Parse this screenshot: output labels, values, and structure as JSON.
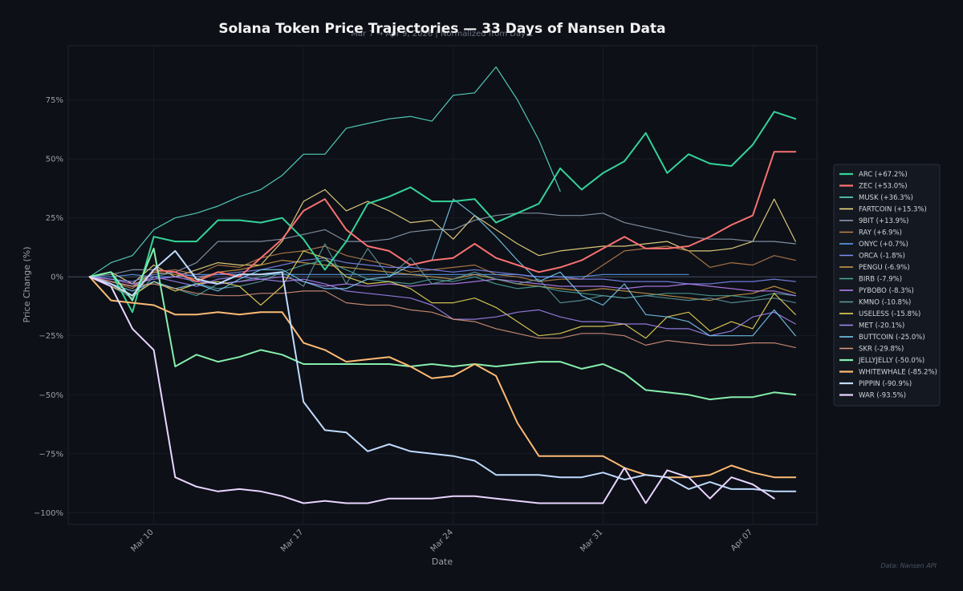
{
  "chart_data": {
    "type": "line",
    "title": "Solana Token Price Trajectories — 33 Days of Nansen Data",
    "subtitle": "Mar 7 → Apr 9, 2026 | Normalized from Day 1",
    "xlabel": "Date",
    "ylabel": "Price Change (%)",
    "source": "Data: Nansen API",
    "ylim": [
      -105,
      98
    ],
    "xlim": [
      -1,
      34
    ],
    "x_ticks": [
      {
        "day": 3,
        "label": "Mar 10"
      },
      {
        "day": 10,
        "label": "Mar 17"
      },
      {
        "day": 17,
        "label": "Mar 24"
      },
      {
        "day": 24,
        "label": "Mar 31"
      },
      {
        "day": 31,
        "label": "Apr 07"
      }
    ],
    "y_ticks": [
      {
        "value": 75,
        "label": "75%"
      },
      {
        "value": 50,
        "label": "50%"
      },
      {
        "value": 25,
        "label": "25%"
      },
      {
        "value": 0,
        "label": "0%"
      },
      {
        "value": -25,
        "label": "−25%"
      },
      {
        "value": -50,
        "label": "−50%"
      },
      {
        "value": -75,
        "label": "−75%"
      },
      {
        "value": -100,
        "label": "−100%"
      }
    ],
    "grid": true,
    "legend_position": "right",
    "series": [
      {
        "name": "ARC",
        "legend": "ARC (+67.2%)",
        "color": "#34d399",
        "bold": true,
        "values": [
          0,
          2,
          -15,
          17,
          15,
          15,
          24,
          24,
          23,
          25,
          16,
          3,
          15,
          31,
          34,
          38,
          32,
          32,
          33,
          23,
          27,
          31,
          46,
          37,
          44,
          49,
          61,
          44,
          52,
          48,
          47,
          56,
          70,
          67
        ]
      },
      {
        "name": "ZEC",
        "legend": "ZEC (+53.0%)",
        "color": "#f87171",
        "bold": true,
        "values": [
          0,
          -3,
          -8,
          3,
          2,
          -2,
          2,
          0,
          8,
          16,
          28,
          33,
          20,
          13,
          11,
          5,
          7,
          8,
          14,
          8,
          5,
          2,
          4,
          7,
          12,
          17,
          12,
          12,
          13,
          17,
          22,
          26,
          53,
          53
        ]
      },
      {
        "name": "MUSK",
        "legend": "MUSK (+36.3%)",
        "color": "#5eead4",
        "bold": false,
        "values": [
          0,
          6,
          9,
          20,
          25,
          27,
          30,
          34,
          37,
          43,
          52,
          52,
          63,
          65,
          67,
          68,
          66,
          77,
          78,
          89,
          75,
          58,
          36.3
        ]
      },
      {
        "name": "FARTCOIN",
        "legend": "FARTCOIN (+15.3%)",
        "color": "#fde68a",
        "bold": false,
        "values": [
          0,
          2,
          -3,
          5,
          0,
          3,
          6,
          5,
          5,
          15,
          32,
          37,
          28,
          32,
          28,
          23,
          24,
          16,
          26,
          20,
          14,
          9,
          11,
          12,
          13,
          13,
          14,
          15,
          11,
          11,
          12,
          15,
          33,
          15
        ]
      },
      {
        "name": "9BIT",
        "legend": "9BIT (+13.9%)",
        "color": "#94a3b8",
        "bold": false,
        "values": [
          0,
          1,
          3,
          3,
          2,
          6,
          15,
          15,
          15,
          16,
          18,
          20,
          15,
          15,
          16,
          19,
          20,
          20,
          24,
          26,
          27,
          27,
          26,
          26,
          27,
          23,
          21,
          19,
          17,
          16,
          16,
          15,
          15,
          14
        ]
      },
      {
        "name": "RAY",
        "legend": "RAY (+6.9%)",
        "color": "#c0844f",
        "bold": false,
        "values": [
          0,
          -2,
          -5,
          2,
          3,
          1,
          5,
          4,
          8,
          10,
          11,
          13,
          9,
          7,
          5,
          2,
          3,
          4,
          5,
          1,
          0,
          -2,
          -1,
          -1,
          5,
          11,
          12,
          13,
          11,
          4,
          6,
          5,
          9,
          7
        ]
      },
      {
        "name": "ONYC",
        "legend": "ONYC (+0.7%)",
        "color": "#60a5fa",
        "bold": false,
        "values": [
          0,
          0,
          1,
          0,
          0,
          1,
          1,
          1,
          1,
          1,
          1,
          1,
          1,
          1,
          1,
          1,
          1,
          1,
          1,
          1,
          1,
          0,
          0,
          0,
          1,
          1,
          1,
          1,
          1
        ]
      },
      {
        "name": "ORCA",
        "legend": "ORCA (-1.8%)",
        "color": "#818cf8",
        "bold": false,
        "values": [
          0,
          -1,
          -2,
          1,
          2,
          0,
          1,
          2,
          3,
          5,
          7,
          8,
          6,
          5,
          4,
          4,
          3,
          2,
          3,
          2,
          1,
          0,
          0,
          -1,
          -1,
          -2,
          -2,
          -2,
          -3,
          -3,
          -2,
          -2,
          -1,
          -2
        ]
      },
      {
        "name": "PENGU",
        "legend": "PENGU (-6.9%)",
        "color": "#d4a04a",
        "bold": false,
        "values": [
          0,
          -2,
          -4,
          2,
          1,
          -1,
          2,
          3,
          5,
          7,
          6,
          5,
          4,
          3,
          2,
          1,
          0,
          -1,
          1,
          -1,
          -3,
          -4,
          -5,
          -6,
          -5,
          -6,
          -7,
          -8,
          -9,
          -10,
          -8,
          -7,
          -4,
          -7
        ]
      },
      {
        "name": "BIRB",
        "legend": "BIRB (-7.9%)",
        "color": "#4ca79d",
        "bold": false,
        "values": [
          0,
          -3,
          -8,
          -2,
          -5,
          -8,
          -3,
          -2,
          0,
          2,
          5,
          7,
          3,
          -1,
          -2,
          -3,
          -1,
          -2,
          0,
          -3,
          -5,
          -4,
          -6,
          -7,
          -8,
          -9,
          -8,
          -7,
          -7,
          -8,
          -8,
          -9,
          -7,
          -8
        ]
      },
      {
        "name": "PYBOBO",
        "legend": "PYBOBO (-8.3%)",
        "color": "#c084fc",
        "bold": false,
        "values": [
          0,
          -1,
          -3,
          -1,
          0,
          -2,
          -3,
          -2,
          -1,
          0,
          -2,
          -4,
          -3,
          -4,
          -3,
          -4,
          -3,
          -3,
          -2,
          -1,
          -2,
          -3,
          -4,
          -4,
          -4,
          -5,
          -4,
          -4,
          -3,
          -4,
          -5,
          -6,
          -6,
          -8
        ]
      },
      {
        "name": "KMNO",
        "legend": "KMNO (-10.8%)",
        "color": "#5f9ea0",
        "bold": false,
        "values": [
          0,
          -4,
          -9,
          0,
          2,
          -3,
          -5,
          -4,
          -2,
          2,
          -4,
          14,
          -3,
          12,
          0,
          8,
          -3,
          -1,
          2,
          -1,
          -3,
          -1,
          -11,
          -10,
          -8,
          -9,
          -8,
          -9,
          -10,
          -9,
          -11,
          -10,
          -9,
          -11
        ]
      },
      {
        "name": "USELESS",
        "legend": "USELESS (-15.8%)",
        "color": "#f5e15a",
        "bold": false,
        "values": [
          0,
          -4,
          -8,
          -2,
          -6,
          -3,
          -2,
          -4,
          -12,
          -4,
          11,
          8,
          0,
          -3,
          -2,
          -5,
          -11,
          -11,
          -9,
          -13,
          -19,
          -25,
          -24,
          -21,
          -21,
          -20,
          -26,
          -17,
          -15,
          -23,
          -19,
          -22,
          -7,
          -16
        ]
      },
      {
        "name": "MET",
        "legend": "MET (-20.1%)",
        "color": "#a78bfa",
        "bold": false,
        "values": [
          0,
          -2,
          -4,
          0,
          -2,
          -4,
          -1,
          0,
          -1,
          -2,
          -1,
          -3,
          -6,
          -7,
          -8,
          -9,
          -12,
          -18,
          -18,
          -17,
          -15,
          -14,
          -17,
          -19,
          -19,
          -20,
          -20,
          -22,
          -22,
          -25,
          -23,
          -17,
          -15,
          -20
        ]
      },
      {
        "name": "BUTTCOIN",
        "legend": "BUTTCOIN (-25.0%)",
        "color": "#7dd3fc",
        "bold": false,
        "values": [
          0,
          -3,
          -6,
          -2,
          -5,
          -3,
          -6,
          -1,
          3,
          3,
          -2,
          -5,
          -5,
          -1,
          0,
          5,
          7,
          33,
          26,
          17,
          7,
          -2,
          2,
          -8,
          -12,
          -3,
          -16,
          -17,
          -19,
          -25,
          -25,
          -25,
          -14,
          -25
        ]
      },
      {
        "name": "SKR",
        "legend": "SKR (-29.8%)",
        "color": "#e09a7e",
        "bold": false,
        "values": [
          0,
          -2,
          -4,
          -3,
          -5,
          -7,
          -8,
          -8,
          -7,
          -7,
          -6,
          -6,
          -11,
          -12,
          -12,
          -14,
          -15,
          -18,
          -19,
          -22,
          -24,
          -26,
          -26,
          -24,
          -24,
          -25,
          -29,
          -27,
          -28,
          -29,
          -29,
          -28,
          -28,
          -30
        ]
      },
      {
        "name": "JELLYJELLY",
        "legend": "JELLYJELLY (-50.0%)",
        "color": "#86efac",
        "bold": true,
        "values": [
          0,
          2,
          -10,
          12,
          -38,
          -33,
          -36,
          -34,
          -31,
          -33,
          -37,
          -37,
          -37,
          -37,
          -37,
          -38,
          -37,
          -38,
          -37,
          -38,
          -37,
          -36,
          -36,
          -39,
          -37,
          -41,
          -48,
          -49,
          -50,
          -52,
          -51,
          -51,
          -49,
          -50
        ]
      },
      {
        "name": "WHITEWHALE",
        "legend": "WHITEWHALE (-85.2%)",
        "color": "#fdba74",
        "bold": true,
        "values": [
          0,
          -10,
          -11,
          -12,
          -16,
          -16,
          -15,
          -16,
          -15,
          -15,
          -28,
          -31,
          -36,
          -35,
          -34,
          -38,
          -43,
          -42,
          -37,
          -42,
          -62,
          -76,
          -76,
          -76,
          -76,
          -81,
          -84,
          -85,
          -85,
          -84,
          -80,
          -83,
          -85,
          -85
        ]
      },
      {
        "name": "PIPPIN",
        "legend": "PIPPIN (-90.9%)",
        "color": "#bfdbfe",
        "bold": true,
        "values": [
          0,
          -3,
          -8,
          3,
          11,
          -1,
          -3,
          1,
          1,
          2,
          -53,
          -65,
          -66,
          -74,
          -71,
          -74,
          -75,
          -76,
          -78,
          -84,
          -84,
          -84,
          -85,
          -85,
          -83,
          -86,
          -84,
          -85,
          -90,
          -87,
          -90,
          -90,
          -91,
          -91
        ]
      },
      {
        "name": "WAR",
        "legend": "WAR (-93.5%)",
        "color": "#e9d5ff",
        "bold": true,
        "values": [
          0,
          -4,
          -22,
          -31,
          -85,
          -89,
          -91,
          -90,
          -91,
          -93,
          -96,
          -95,
          -96,
          -96,
          -94,
          -94,
          -94,
          -93,
          -93,
          -94,
          -95,
          -96,
          -96,
          -96,
          -96,
          -81,
          -96,
          -82,
          -85,
          -94,
          -85,
          -88,
          -94
        ]
      }
    ]
  }
}
